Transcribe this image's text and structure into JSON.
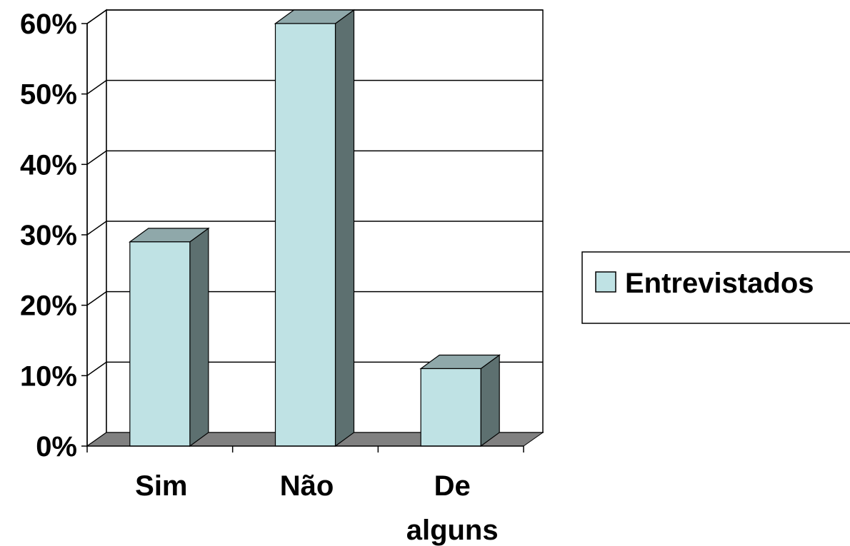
{
  "chart_data": {
    "type": "bar",
    "style": "3d-column",
    "categories": [
      "Sim",
      "Não",
      "De alguns"
    ],
    "category_lines": [
      [
        "Sim"
      ],
      [
        "Não"
      ],
      [
        "De",
        "alguns"
      ]
    ],
    "series": [
      {
        "name": "Entrevistados",
        "values": [
          0.29,
          0.6,
          0.11
        ]
      }
    ],
    "ylim": [
      0,
      0.6
    ],
    "yticks": [
      "0%",
      "10%",
      "20%",
      "30%",
      "40%",
      "50%",
      "60%"
    ],
    "grid": true,
    "legend_position": "right",
    "colors": {
      "bar_front": "#bfe2e4",
      "bar_top": "#8fa8aa",
      "bar_side": "#5d7070",
      "floor": "#808080"
    }
  }
}
